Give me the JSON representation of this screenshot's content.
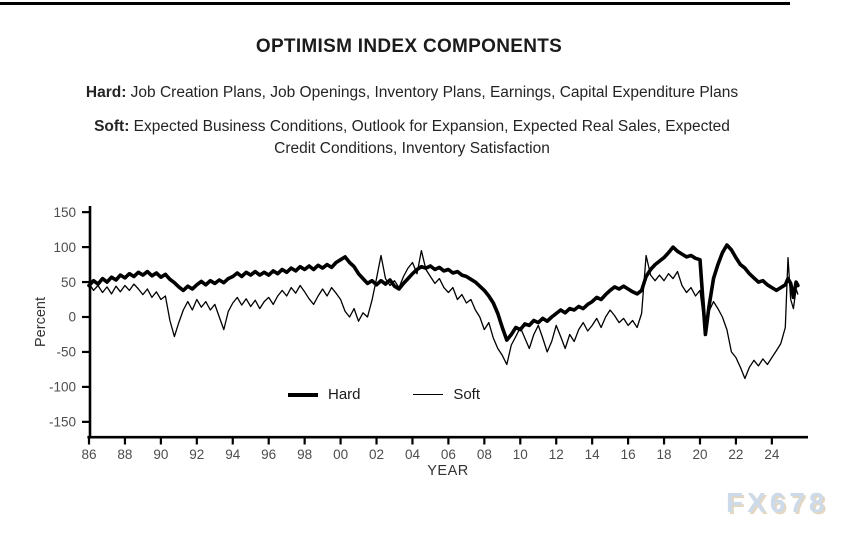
{
  "page": {
    "title": "OPTIMISM INDEX COMPONENTS",
    "subtitle_hard_prefix": "Hard:",
    "subtitle_hard_rest": " Job Creation Plans, Job Openings, Inventory Plans, Earnings, Capital Expenditure Plans",
    "subtitle_soft_prefix": "Soft:",
    "subtitle_soft_line1_rest": " Expected Business Conditions, Outlook for Expansion, Expected Real Sales, Expected",
    "subtitle_soft_line2": "Credit Conditions, Inventory Satisfaction",
    "watermark": "FX678"
  },
  "chart_data": {
    "type": "line",
    "title": "OPTIMISM INDEX COMPONENTS",
    "xlabel": "YEAR",
    "ylabel": "Percent",
    "ylim": [
      -150,
      150
    ],
    "xlim_years": [
      1986,
      2025.6
    ],
    "grid": false,
    "legend_position": "inside-bottom-center",
    "line_color": "#000000",
    "tick_label_color": "#4d4d4d",
    "y_ticks": [
      150,
      100,
      50,
      0,
      -50,
      -100,
      -150
    ],
    "x_ticks": [
      {
        "label": "86",
        "year": 1986
      },
      {
        "label": "88",
        "year": 1988
      },
      {
        "label": "90",
        "year": 1990
      },
      {
        "label": "92",
        "year": 1992
      },
      {
        "label": "94",
        "year": 1994
      },
      {
        "label": "96",
        "year": 1996
      },
      {
        "label": "98",
        "year": 1998
      },
      {
        "label": "00",
        "year": 2000
      },
      {
        "label": "02",
        "year": 2002
      },
      {
        "label": "04",
        "year": 2004
      },
      {
        "label": "06",
        "year": 2006
      },
      {
        "label": "08",
        "year": 2008
      },
      {
        "label": "10",
        "year": 2010
      },
      {
        "label": "12",
        "year": 2012
      },
      {
        "label": "14",
        "year": 2014
      },
      {
        "label": "16",
        "year": 2016
      },
      {
        "label": "18",
        "year": 2018
      },
      {
        "label": "20",
        "year": 2020
      },
      {
        "label": "22",
        "year": 2022
      },
      {
        "label": "24",
        "year": 2024
      }
    ],
    "legend": [
      {
        "label": "Hard",
        "style": "thick"
      },
      {
        "label": "Soft",
        "style": "thin"
      }
    ],
    "points_format": [
      "year",
      "hard",
      "soft"
    ],
    "points": [
      [
        1986.0,
        45,
        48
      ],
      [
        1986.25,
        52,
        38
      ],
      [
        1986.5,
        47,
        45
      ],
      [
        1986.75,
        55,
        35
      ],
      [
        1987.0,
        50,
        43
      ],
      [
        1987.25,
        57,
        33
      ],
      [
        1987.5,
        53,
        44
      ],
      [
        1987.75,
        60,
        36
      ],
      [
        1988.0,
        56,
        45
      ],
      [
        1988.25,
        62,
        38
      ],
      [
        1988.5,
        58,
        47
      ],
      [
        1988.75,
        64,
        40
      ],
      [
        1989.0,
        60,
        32
      ],
      [
        1989.25,
        65,
        40
      ],
      [
        1989.5,
        59,
        28
      ],
      [
        1989.75,
        63,
        36
      ],
      [
        1990.0,
        57,
        25
      ],
      [
        1990.25,
        61,
        30
      ],
      [
        1990.5,
        54,
        -5
      ],
      [
        1990.75,
        49,
        -28
      ],
      [
        1991.0,
        43,
        -8
      ],
      [
        1991.25,
        38,
        10
      ],
      [
        1991.5,
        44,
        22
      ],
      [
        1991.75,
        40,
        10
      ],
      [
        1992.0,
        46,
        25
      ],
      [
        1992.25,
        51,
        14
      ],
      [
        1992.5,
        46,
        22
      ],
      [
        1992.75,
        52,
        10
      ],
      [
        1993.0,
        48,
        18
      ],
      [
        1993.25,
        53,
        0
      ],
      [
        1993.5,
        49,
        -18
      ],
      [
        1993.75,
        55,
        8
      ],
      [
        1994.0,
        58,
        20
      ],
      [
        1994.25,
        63,
        28
      ],
      [
        1994.5,
        58,
        17
      ],
      [
        1994.75,
        64,
        26
      ],
      [
        1995.0,
        60,
        15
      ],
      [
        1995.25,
        65,
        24
      ],
      [
        1995.5,
        60,
        12
      ],
      [
        1995.75,
        64,
        22
      ],
      [
        1996.0,
        60,
        28
      ],
      [
        1996.25,
        66,
        18
      ],
      [
        1996.5,
        62,
        30
      ],
      [
        1996.75,
        68,
        38
      ],
      [
        1997.0,
        64,
        30
      ],
      [
        1997.25,
        70,
        42
      ],
      [
        1997.5,
        66,
        34
      ],
      [
        1997.75,
        72,
        45
      ],
      [
        1998.0,
        68,
        36
      ],
      [
        1998.25,
        73,
        26
      ],
      [
        1998.5,
        68,
        18
      ],
      [
        1998.75,
        74,
        30
      ],
      [
        1999.0,
        70,
        40
      ],
      [
        1999.25,
        75,
        30
      ],
      [
        1999.5,
        71,
        42
      ],
      [
        1999.75,
        78,
        34
      ],
      [
        2000.0,
        82,
        25
      ],
      [
        2000.25,
        86,
        8
      ],
      [
        2000.5,
        78,
        0
      ],
      [
        2000.75,
        72,
        12
      ],
      [
        2001.0,
        62,
        -6
      ],
      [
        2001.25,
        55,
        6
      ],
      [
        2001.5,
        48,
        0
      ],
      [
        2001.75,
        52,
        24
      ],
      [
        2002.0,
        46,
        55
      ],
      [
        2002.25,
        52,
        88
      ],
      [
        2002.5,
        47,
        55
      ],
      [
        2002.75,
        53,
        45
      ],
      [
        2003.0,
        44,
        52
      ],
      [
        2003.25,
        40,
        42
      ],
      [
        2003.5,
        48,
        58
      ],
      [
        2003.75,
        55,
        70
      ],
      [
        2004.0,
        62,
        78
      ],
      [
        2004.25,
        68,
        62
      ],
      [
        2004.5,
        72,
        95
      ],
      [
        2004.75,
        70,
        68
      ],
      [
        2005.0,
        73,
        58
      ],
      [
        2005.25,
        68,
        48
      ],
      [
        2005.5,
        71,
        55
      ],
      [
        2005.75,
        66,
        42
      ],
      [
        2006.0,
        68,
        35
      ],
      [
        2006.25,
        63,
        42
      ],
      [
        2006.5,
        65,
        25
      ],
      [
        2006.75,
        60,
        32
      ],
      [
        2007.0,
        58,
        20
      ],
      [
        2007.25,
        54,
        25
      ],
      [
        2007.5,
        50,
        10
      ],
      [
        2007.75,
        44,
        0
      ],
      [
        2008.0,
        38,
        -18
      ],
      [
        2008.25,
        30,
        -8
      ],
      [
        2008.5,
        20,
        -30
      ],
      [
        2008.75,
        5,
        -45
      ],
      [
        2009.0,
        -15,
        -55
      ],
      [
        2009.25,
        -33,
        -68
      ],
      [
        2009.5,
        -25,
        -40
      ],
      [
        2009.75,
        -15,
        -28
      ],
      [
        2010.0,
        -18,
        -15
      ],
      [
        2010.25,
        -10,
        -30
      ],
      [
        2010.5,
        -12,
        -45
      ],
      [
        2010.75,
        -5,
        -25
      ],
      [
        2011.0,
        -8,
        -12
      ],
      [
        2011.25,
        -2,
        -30
      ],
      [
        2011.5,
        -6,
        -50
      ],
      [
        2011.75,
        0,
        -35
      ],
      [
        2012.0,
        5,
        -12
      ],
      [
        2012.25,
        10,
        -28
      ],
      [
        2012.5,
        6,
        -45
      ],
      [
        2012.75,
        12,
        -25
      ],
      [
        2013.0,
        10,
        -35
      ],
      [
        2013.25,
        15,
        -18
      ],
      [
        2013.5,
        12,
        -8
      ],
      [
        2013.75,
        18,
        -20
      ],
      [
        2014.0,
        22,
        -12
      ],
      [
        2014.25,
        28,
        -2
      ],
      [
        2014.5,
        25,
        -15
      ],
      [
        2014.75,
        32,
        0
      ],
      [
        2015.0,
        38,
        10
      ],
      [
        2015.25,
        43,
        2
      ],
      [
        2015.5,
        40,
        -8
      ],
      [
        2015.75,
        44,
        -2
      ],
      [
        2016.0,
        40,
        -12
      ],
      [
        2016.25,
        36,
        -5
      ],
      [
        2016.5,
        33,
        -15
      ],
      [
        2016.75,
        38,
        5
      ],
      [
        2017.0,
        58,
        88
      ],
      [
        2017.25,
        68,
        60
      ],
      [
        2017.5,
        75,
        52
      ],
      [
        2017.75,
        80,
        60
      ],
      [
        2018.0,
        85,
        52
      ],
      [
        2018.25,
        92,
        62
      ],
      [
        2018.5,
        100,
        55
      ],
      [
        2018.75,
        94,
        65
      ],
      [
        2019.0,
        90,
        45
      ],
      [
        2019.25,
        86,
        35
      ],
      [
        2019.5,
        88,
        42
      ],
      [
        2019.75,
        84,
        30
      ],
      [
        2020.0,
        82,
        38
      ],
      [
        2020.3,
        -25,
        -25
      ],
      [
        2020.5,
        15,
        8
      ],
      [
        2020.75,
        55,
        22
      ],
      [
        2021.0,
        75,
        12
      ],
      [
        2021.25,
        92,
        0
      ],
      [
        2021.5,
        103,
        -18
      ],
      [
        2021.75,
        96,
        -50
      ],
      [
        2022.0,
        85,
        -58
      ],
      [
        2022.25,
        75,
        -72
      ],
      [
        2022.5,
        70,
        -88
      ],
      [
        2022.75,
        62,
        -72
      ],
      [
        2023.0,
        56,
        -62
      ],
      [
        2023.25,
        50,
        -70
      ],
      [
        2023.5,
        52,
        -60
      ],
      [
        2023.75,
        46,
        -68
      ],
      [
        2024.0,
        42,
        -58
      ],
      [
        2024.25,
        38,
        -48
      ],
      [
        2024.5,
        42,
        -38
      ],
      [
        2024.75,
        46,
        -15
      ],
      [
        2024.9,
        55,
        85
      ],
      [
        2025.05,
        48,
        25
      ],
      [
        2025.2,
        28,
        12
      ],
      [
        2025.35,
        50,
        40
      ],
      [
        2025.45,
        45,
        32
      ]
    ]
  }
}
